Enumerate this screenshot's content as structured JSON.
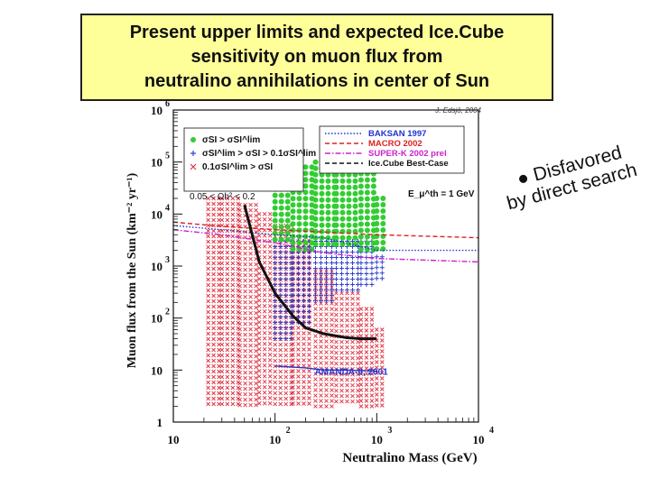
{
  "title_lines": [
    "Present upper limits and expected Ice.Cube",
    "sensitivity on muon flux from",
    "neutralino annihilations in center of Sun"
  ],
  "annotation_lines": [
    "● Disfavored",
    "by direct search"
  ],
  "chart_data": {
    "type": "scatter",
    "xlabel": "Neutralino Mass (GeV)",
    "ylabel": "Muon flux from the Sun (km⁻² yr⁻¹)",
    "xscale": "log",
    "yscale": "log",
    "xlim": [
      10,
      10000
    ],
    "ylim": [
      1,
      1000000
    ],
    "x_ticks": [
      {
        "base": "10",
        "exp": ""
      },
      {
        "base": "10",
        "exp": "2"
      },
      {
        "base": "10",
        "exp": "3"
      },
      {
        "base": "10",
        "exp": "4"
      }
    ],
    "y_ticks": [
      {
        "base": "1",
        "exp": ""
      },
      {
        "base": "10",
        "exp": ""
      },
      {
        "base": "10",
        "exp": "2"
      },
      {
        "base": "10",
        "exp": "3"
      },
      {
        "base": "10",
        "exp": "4"
      },
      {
        "base": "10",
        "exp": "5"
      },
      {
        "base": "10",
        "exp": "6"
      }
    ],
    "credit": "J. Edsjö, 2004",
    "threshold_label": "E_μ^th = 1 GeV",
    "omega_label": "0.05 < Ωh² < 0.2",
    "legend_lines": [
      {
        "name": "BAKSAN 1997",
        "color": "#2233cc",
        "dash": "dotted"
      },
      {
        "name": "MACRO 2002",
        "color": "#dd2222",
        "dash": "dashed"
      },
      {
        "name": "SUPER-K 2002 prel",
        "color": "#cc22cc",
        "dash": "dashdot"
      },
      {
        "name": "Ice.Cube Best-Case",
        "color": "#111111",
        "dash": "dashed"
      }
    ],
    "legend_points": [
      {
        "name": "σSI > σSI^lim",
        "color": "#33cc33",
        "marker": "dot"
      },
      {
        "name": "σSI^lim > σSI > 0.1σSI^lim",
        "color": "#3344cc",
        "marker": "plus"
      },
      {
        "name": "0.1σSI^lim > σSI",
        "color": "#dd3344",
        "marker": "cross"
      }
    ],
    "series": [
      {
        "name": "BAKSAN 1997",
        "color": "#2233cc",
        "x": [
          10,
          30,
          100,
          300,
          1000,
          10000
        ],
        "y": [
          6000,
          5000,
          4000,
          3500,
          2000,
          2000
        ]
      },
      {
        "name": "MACRO 2002",
        "color": "#dd2222",
        "x": [
          10,
          30,
          100,
          300,
          1000,
          10000
        ],
        "y": [
          7000,
          5800,
          5000,
          4500,
          4000,
          3500
        ]
      },
      {
        "name": "SUPER-K 2002 prel",
        "color": "#cc22cc",
        "x": [
          10,
          30,
          100,
          300,
          1000,
          10000
        ],
        "y": [
          5000,
          4000,
          2800,
          1800,
          1400,
          1200
        ]
      },
      {
        "name": "Ice.Cube Best-Case",
        "color": "#111111",
        "x": [
          50,
          70,
          100,
          150,
          200,
          300,
          500,
          700,
          1000
        ],
        "y": [
          15000,
          1200,
          300,
          110,
          65,
          50,
          42,
          40,
          40
        ]
      },
      {
        "name": "AMANDA-II, 2001",
        "color": "#2233cc",
        "x": [
          100,
          200,
          300,
          500,
          1000
        ],
        "y": [
          12,
          11,
          10,
          10,
          9.5
        ]
      }
    ],
    "point_clouds": [
      {
        "name": "0.1σSI^lim > σSI",
        "color": "#dd3344",
        "marker": "cross",
        "columns": [
          {
            "x": 22,
            "ymin": 2,
            "ymax": 20000
          },
          {
            "x": 30,
            "ymin": 2,
            "ymax": 20000
          },
          {
            "x": 45,
            "ymin": 2,
            "ymax": 15000
          },
          {
            "x": 70,
            "ymin": 2,
            "ymax": 10000
          },
          {
            "x": 100,
            "ymin": 2,
            "ymax": 6000
          },
          {
            "x": 150,
            "ymin": 2,
            "ymax": 3000
          },
          {
            "x": 250,
            "ymin": 2,
            "ymax": 800
          },
          {
            "x": 400,
            "ymin": 2,
            "ymax": 300
          },
          {
            "x": 700,
            "ymin": 2,
            "ymax": 150
          },
          {
            "x": 1000,
            "ymin": 2,
            "ymax": 60
          }
        ]
      },
      {
        "name": "σSI^lim > σSI > 0.1σSI^lim",
        "color": "#3344cc",
        "marker": "plus",
        "columns": [
          {
            "x": 100,
            "ymin": 40,
            "ymax": 3000
          },
          {
            "x": 150,
            "ymin": 80,
            "ymax": 3000
          },
          {
            "x": 250,
            "ymin": 200,
            "ymax": 3000
          },
          {
            "x": 400,
            "ymin": 300,
            "ymax": 3000
          },
          {
            "x": 700,
            "ymin": 400,
            "ymax": 3000
          },
          {
            "x": 1000,
            "ymin": 500,
            "ymax": 1500
          }
        ]
      },
      {
        "name": "σSI > σSI^lim",
        "color": "#33cc33",
        "marker": "dot",
        "columns": [
          {
            "x": 100,
            "ymin": 3000,
            "ymax": 40000
          },
          {
            "x": 150,
            "ymin": 2000,
            "ymax": 80000
          },
          {
            "x": 250,
            "ymin": 2000,
            "ymax": 100000
          },
          {
            "x": 400,
            "ymin": 2000,
            "ymax": 100000
          },
          {
            "x": 700,
            "ymin": 2000,
            "ymax": 60000
          },
          {
            "x": 1000,
            "ymin": 2000,
            "ymax": 20000
          }
        ]
      }
    ],
    "series_labels": [
      {
        "text": "AMANDA-II, 2001",
        "color": "#2233cc"
      }
    ]
  },
  "colors": {
    "title_bg": "#ffff99",
    "plot_frame": "#111111"
  }
}
